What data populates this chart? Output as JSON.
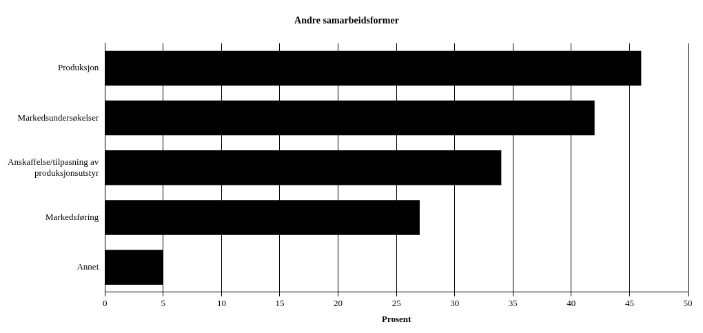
{
  "chart_data": {
    "type": "bar",
    "orientation": "horizontal",
    "title": "Andre samarbeidsformer",
    "xlabel": "Prosent",
    "categories": [
      "Produksjon",
      "Markedsundersøkelser",
      "Anskaffelse/tilpasning av produksjonsutstyr",
      "Markedsføring",
      "Annet"
    ],
    "values": [
      46,
      42,
      34,
      27,
      5
    ],
    "color": "#000000",
    "xlim": [
      0,
      50
    ],
    "xticks": [
      0,
      5,
      10,
      15,
      20,
      25,
      30,
      35,
      40,
      45,
      50
    ],
    "grid": "x",
    "legend": false
  }
}
